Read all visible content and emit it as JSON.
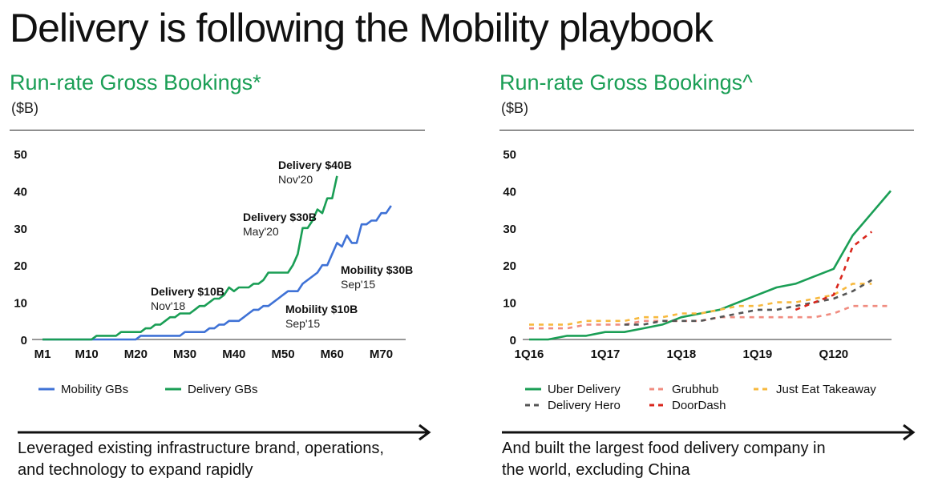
{
  "page": {
    "title": "Delivery is following the Mobility playbook",
    "accent_color": "#1a9e55",
    "left": {
      "subtitle": "Run-rate Gross Bookings*",
      "unit": "($B)",
      "caption_line1": "Leveraged existing infrastructure brand, operations,",
      "caption_line2": "and technology  to expand rapidly"
    },
    "right": {
      "subtitle": "Run-rate Gross Bookings^",
      "unit": "($B)",
      "caption_line1": "And built the largest food delivery company in",
      "caption_line2": "the world, excluding China"
    }
  },
  "chart_data": [
    {
      "type": "line",
      "ylim": [
        0,
        50
      ],
      "yticks": [
        0,
        10,
        20,
        30,
        40,
        50
      ],
      "xlim": [
        1,
        74
      ],
      "xticks": [
        {
          "v": 1,
          "label": "M1"
        },
        {
          "v": 10,
          "label": "M10"
        },
        {
          "v": 20,
          "label": "M20"
        },
        {
          "v": 30,
          "label": "M30"
        },
        {
          "v": 40,
          "label": "M40"
        },
        {
          "v": 50,
          "label": "M50"
        },
        {
          "v": 60,
          "label": "M60"
        },
        {
          "v": 70,
          "label": "M70"
        }
      ],
      "legend_position": "bottom",
      "series": [
        {
          "name": "Mobility GBs",
          "color": "#3f72d6",
          "dash": "",
          "points": [
            [
              1,
              0
            ],
            [
              20,
              0
            ],
            [
              21,
              1
            ],
            [
              29,
              1
            ],
            [
              30,
              2
            ],
            [
              34,
              2
            ],
            [
              35,
              3
            ],
            [
              36,
              3
            ],
            [
              37,
              4
            ],
            [
              38,
              4
            ],
            [
              39,
              5
            ],
            [
              41,
              5
            ],
            [
              42,
              6
            ],
            [
              43,
              7
            ],
            [
              44,
              8
            ],
            [
              45,
              8
            ],
            [
              46,
              9
            ],
            [
              47,
              9
            ],
            [
              48,
              10
            ],
            [
              49,
              11
            ],
            [
              50,
              12
            ],
            [
              51,
              13
            ],
            [
              53,
              13
            ],
            [
              54,
              15
            ],
            [
              56,
              17
            ],
            [
              57,
              18
            ],
            [
              58,
              20
            ],
            [
              59,
              20
            ],
            [
              60,
              23
            ],
            [
              61,
              26
            ],
            [
              62,
              25
            ],
            [
              63,
              28
            ],
            [
              64,
              26
            ],
            [
              65,
              26
            ],
            [
              66,
              31
            ],
            [
              67,
              31
            ],
            [
              68,
              32
            ],
            [
              69,
              32
            ],
            [
              70,
              34
            ],
            [
              71,
              34
            ],
            [
              72,
              36
            ]
          ]
        },
        {
          "name": "Delivery GBs",
          "color": "#1a9e55",
          "dash": "",
          "points": [
            [
              1,
              0
            ],
            [
              11,
              0
            ],
            [
              12,
              1
            ],
            [
              16,
              1
            ],
            [
              17,
              2
            ],
            [
              21,
              2
            ],
            [
              22,
              3
            ],
            [
              23,
              3
            ],
            [
              24,
              4
            ],
            [
              25,
              4
            ],
            [
              26,
              5
            ],
            [
              27,
              6
            ],
            [
              28,
              6
            ],
            [
              29,
              7
            ],
            [
              31,
              7
            ],
            [
              32,
              8
            ],
            [
              33,
              9
            ],
            [
              34,
              9
            ],
            [
              35,
              10
            ],
            [
              36,
              11
            ],
            [
              37,
              11
            ],
            [
              38,
              12
            ],
            [
              39,
              14
            ],
            [
              40,
              13
            ],
            [
              41,
              14
            ],
            [
              43,
              14
            ],
            [
              44,
              15
            ],
            [
              45,
              15
            ],
            [
              46,
              16
            ],
            [
              47,
              18
            ],
            [
              51,
              18
            ],
            [
              52,
              20
            ],
            [
              53,
              23
            ],
            [
              54,
              30
            ],
            [
              55,
              30
            ],
            [
              56,
              32
            ],
            [
              57,
              35
            ],
            [
              58,
              34
            ],
            [
              59,
              38
            ],
            [
              60,
              38
            ],
            [
              61,
              44
            ]
          ]
        }
      ],
      "annotations": [
        {
          "bold": "Delivery $40B",
          "date": "Nov'20",
          "x": 61,
          "y": 44
        },
        {
          "bold": "Delivery $30B",
          "date": "May'20",
          "x": 54,
          "y": 30
        },
        {
          "bold": "Delivery $10B",
          "date": "Nov'18",
          "x": 35,
          "y": 10
        },
        {
          "bold": "Mobility $30B",
          "date": "Sep'15",
          "x": 66,
          "y": 31
        },
        {
          "bold": "Mobility $10B",
          "date": "Sep'15",
          "x": 48,
          "y": 10
        }
      ]
    },
    {
      "type": "line",
      "ylim": [
        0,
        50
      ],
      "yticks": [
        0,
        10,
        20,
        30,
        40,
        50
      ],
      "xlim": [
        0,
        19
      ],
      "xticks": [
        {
          "v": 0,
          "label": "1Q16"
        },
        {
          "v": 4,
          "label": "1Q17"
        },
        {
          "v": 8,
          "label": "1Q18"
        },
        {
          "v": 12,
          "label": "1Q19"
        },
        {
          "v": 16,
          "label": "Q120"
        }
      ],
      "legend_position": "bottom",
      "series": [
        {
          "name": "Uber Delivery",
          "color": "#1a9e55",
          "dash": "",
          "points": [
            [
              0,
              0
            ],
            [
              1,
              0
            ],
            [
              2,
              1
            ],
            [
              3,
              1
            ],
            [
              4,
              2
            ],
            [
              5,
              2
            ],
            [
              6,
              3
            ],
            [
              7,
              4
            ],
            [
              8,
              6
            ],
            [
              9,
              7
            ],
            [
              10,
              8
            ],
            [
              11,
              10
            ],
            [
              12,
              12
            ],
            [
              13,
              14
            ],
            [
              14,
              15
            ],
            [
              15,
              17
            ],
            [
              16,
              19
            ],
            [
              17,
              28
            ],
            [
              18,
              34
            ],
            [
              19,
              40
            ]
          ]
        },
        {
          "name": "Grubhub",
          "color": "#f08c80",
          "dash": "6,6",
          "points": [
            [
              0,
              3
            ],
            [
              1,
              3
            ],
            [
              2,
              3
            ],
            [
              3,
              4
            ],
            [
              4,
              4
            ],
            [
              5,
              4
            ],
            [
              6,
              5
            ],
            [
              7,
              5
            ],
            [
              8,
              5
            ],
            [
              9,
              5
            ],
            [
              10,
              6
            ],
            [
              11,
              6
            ],
            [
              12,
              6
            ],
            [
              13,
              6
            ],
            [
              14,
              6
            ],
            [
              15,
              6
            ],
            [
              16,
              7
            ],
            [
              17,
              9
            ],
            [
              18,
              9
            ],
            [
              19,
              9
            ]
          ]
        },
        {
          "name": "Just Eat Takeaway",
          "color": "#f7b93e",
          "dash": "6,6",
          "points": [
            [
              0,
              4
            ],
            [
              1,
              4
            ],
            [
              2,
              4
            ],
            [
              3,
              5
            ],
            [
              4,
              5
            ],
            [
              5,
              5
            ],
            [
              6,
              6
            ],
            [
              7,
              6
            ],
            [
              8,
              7
            ],
            [
              9,
              7
            ],
            [
              10,
              8
            ],
            [
              11,
              9
            ],
            [
              12,
              9
            ],
            [
              13,
              10
            ],
            [
              14,
              10
            ],
            [
              15,
              11
            ],
            [
              16,
              12
            ],
            [
              17,
              15
            ],
            [
              18,
              15
            ]
          ]
        },
        {
          "name": "Delivery Hero",
          "color": "#555555",
          "dash": "6,6",
          "points": [
            [
              5,
              4
            ],
            [
              6,
              4
            ],
            [
              7,
              5
            ],
            [
              8,
              5
            ],
            [
              9,
              5
            ],
            [
              10,
              6
            ],
            [
              11,
              7
            ],
            [
              12,
              8
            ],
            [
              13,
              8
            ],
            [
              14,
              9
            ],
            [
              15,
              10
            ],
            [
              16,
              11
            ],
            [
              17,
              13
            ],
            [
              18,
              16
            ]
          ]
        },
        {
          "name": "DoorDash",
          "color": "#d9261c",
          "dash": "6,6",
          "points": [
            [
              14,
              8
            ],
            [
              15,
              10
            ],
            [
              16,
              12
            ],
            [
              16.5,
              18
            ],
            [
              17,
              25
            ],
            [
              18,
              29
            ]
          ]
        }
      ]
    }
  ]
}
